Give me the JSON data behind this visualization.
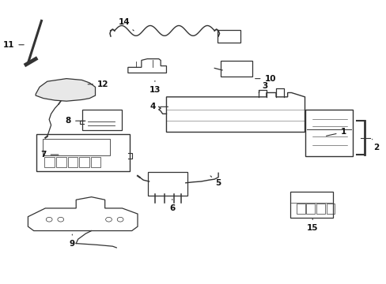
{
  "background_color": "#ffffff",
  "line_color": "#333333",
  "label_color": "#111111",
  "label_positions": {
    "1": [
      0.84,
      0.52,
      0.89,
      0.535
    ],
    "2": [
      0.965,
      0.51,
      0.975,
      0.48
    ],
    "3": [
      0.67,
      0.675,
      0.685,
      0.7
    ],
    "4": [
      0.44,
      0.625,
      0.395,
      0.625
    ],
    "5": [
      0.54,
      0.385,
      0.565,
      0.355
    ],
    "6": [
      0.445,
      0.305,
      0.445,
      0.265
    ],
    "7": [
      0.155,
      0.455,
      0.11,
      0.455
    ],
    "8": [
      0.225,
      0.575,
      0.175,
      0.575
    ],
    "9": [
      0.185,
      0.18,
      0.185,
      0.14
    ],
    "10": [
      0.655,
      0.725,
      0.7,
      0.725
    ],
    "11": [
      0.065,
      0.845,
      0.02,
      0.845
    ],
    "12": [
      0.22,
      0.705,
      0.265,
      0.705
    ],
    "13": [
      0.4,
      0.725,
      0.4,
      0.685
    ],
    "14": [
      0.345,
      0.895,
      0.32,
      0.925
    ],
    "15": [
      0.81,
      0.235,
      0.81,
      0.195
    ]
  }
}
